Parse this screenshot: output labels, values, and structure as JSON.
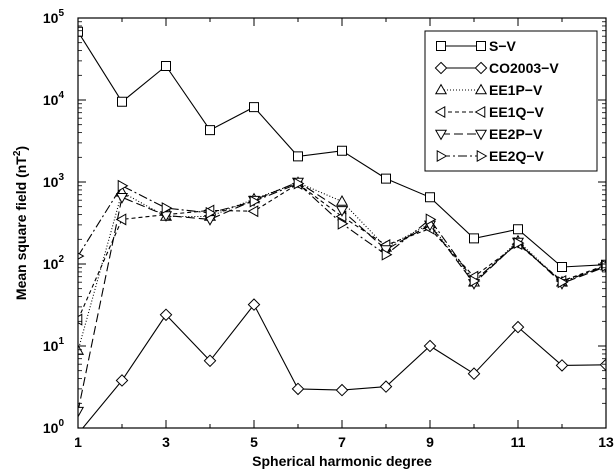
{
  "chart_data": {
    "type": "line",
    "xlabel": "Spherical harmonic degree",
    "ylabel_main": "Mean square field (nT",
    "ylabel_sup": "2",
    "ylabel_close": ")",
    "y_scale": "log",
    "xlim": [
      1,
      13
    ],
    "ylim": [
      1,
      100000
    ],
    "x_ticks": [
      1,
      3,
      5,
      7,
      9,
      11,
      13
    ],
    "x_minor_ticks": [
      2,
      4,
      6,
      8,
      10,
      12
    ],
    "y_ticks": [
      {
        "value": 1,
        "base": "10",
        "exp": "0"
      },
      {
        "value": 10,
        "base": "10",
        "exp": "1"
      },
      {
        "value": 100,
        "base": "10",
        "exp": "2"
      },
      {
        "value": 1000,
        "base": "10",
        "exp": "3"
      },
      {
        "value": 10000,
        "base": "10",
        "exp": "4"
      },
      {
        "value": 100000,
        "base": "10",
        "exp": "5"
      }
    ],
    "grid": false,
    "legend_position": "top-right",
    "x": [
      1,
      2,
      3,
      4,
      5,
      6,
      7,
      8,
      9,
      10,
      11,
      12,
      13
    ],
    "series": [
      {
        "name": "S−V",
        "marker": "square",
        "dash": "",
        "values": [
          68000,
          9500,
          26000,
          4300,
          8200,
          2050,
          2400,
          1100,
          650,
          205,
          265,
          92,
          98
        ]
      },
      {
        "name": "CO2003−V",
        "marker": "diamond",
        "dash": "",
        "values": [
          0.85,
          3.8,
          24,
          6.6,
          32,
          3.0,
          2.9,
          3.2,
          10,
          4.6,
          17,
          5.8,
          5.9
        ]
      },
      {
        "name": "EE1P−V",
        "marker": "triangle-up",
        "dash": "1,2",
        "values": [
          8.8,
          750,
          380,
          380,
          620,
          980,
          580,
          160,
          310,
          60,
          190,
          60,
          95
        ]
      },
      {
        "name": "EE1Q−V",
        "marker": "triangle-left",
        "dash": "4,3",
        "values": [
          21,
          350,
          400,
          450,
          440,
          950,
          380,
          170,
          270,
          70,
          175,
          62,
          97
        ]
      },
      {
        "name": "EE2P−V",
        "marker": "triangle-down",
        "dash": "9,4",
        "values": [
          1.6,
          650,
          390,
          350,
          600,
          1000,
          450,
          150,
          300,
          58,
          185,
          58,
          93
        ]
      },
      {
        "name": "EE2Q−V",
        "marker": "triangle-right",
        "dash": "9,3,2,3",
        "values": [
          125,
          900,
          480,
          420,
          580,
          960,
          310,
          130,
          350,
          62,
          180,
          60,
          95
        ]
      }
    ]
  }
}
